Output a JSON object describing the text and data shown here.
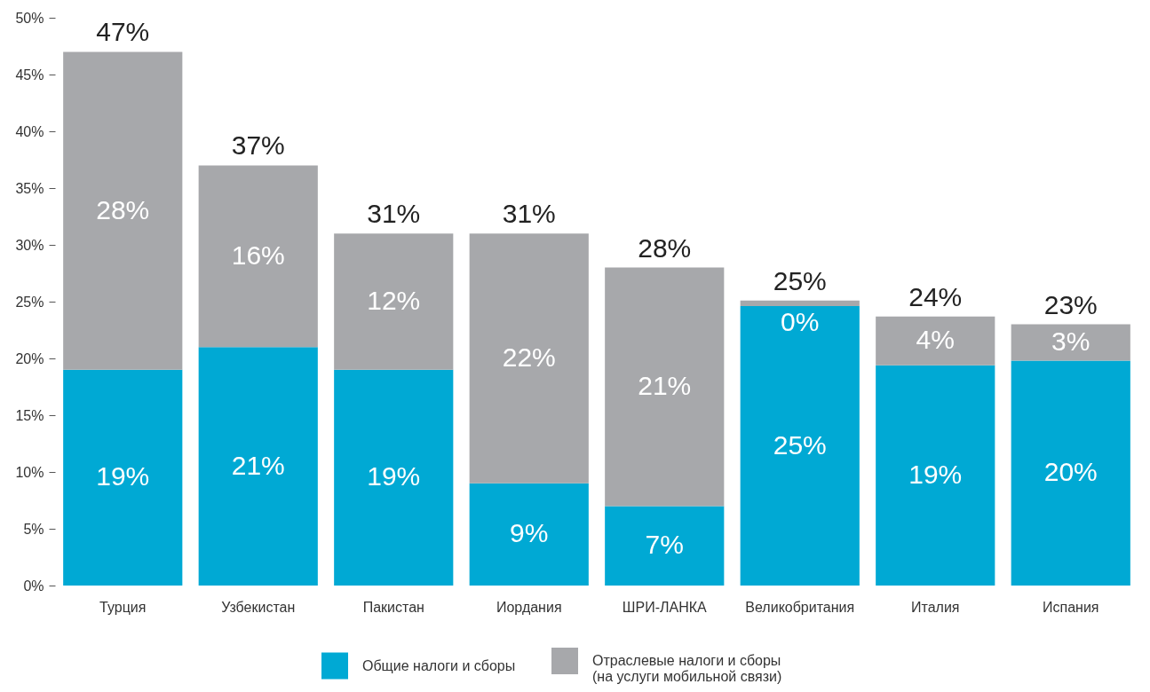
{
  "chart_data": {
    "type": "bar",
    "stacked": true,
    "categories": [
      "Турция",
      "Узбекистан",
      "Пакистан",
      "Иордания",
      "ШРИ-ЛАНКА",
      "Великобритания",
      "Италия",
      "Испания"
    ],
    "series": [
      {
        "name": "Общие налоги и сборы",
        "color": "#00a9d4",
        "values": [
          19,
          21,
          19,
          9,
          7,
          24.6,
          19.4,
          19.8
        ],
        "value_labels": [
          "19%",
          "21%",
          "19%",
          "9%",
          "7%",
          "25%",
          "19%",
          "20%"
        ]
      },
      {
        "name": "Отраслевые налоги и сборы (на услуги мобильной связи)",
        "color": "#a7a8ab",
        "values": [
          28,
          16,
          12,
          22,
          21,
          0.5,
          4.3,
          3.2
        ],
        "value_labels": [
          "28%",
          "16%",
          "12%",
          "22%",
          "21%",
          "0%",
          "4%",
          "3%"
        ]
      }
    ],
    "totals": [
      "47%",
      "37%",
      "31%",
      "31%",
      "28%",
      "25%",
      "24%",
      "23%"
    ],
    "ylim": [
      0,
      50
    ],
    "yticks": [
      {
        "value": 0,
        "label": "0%"
      },
      {
        "value": 5,
        "label": "5%"
      },
      {
        "value": 10,
        "label": "10%"
      },
      {
        "value": 15,
        "label": "15%"
      },
      {
        "value": 20,
        "label": "20%"
      },
      {
        "value": 25,
        "label": "25%"
      },
      {
        "value": 30,
        "label": "30%"
      },
      {
        "value": 35,
        "label": "35%"
      },
      {
        "value": 40,
        "label": "40%"
      },
      {
        "value": 45,
        "label": "45%"
      },
      {
        "value": 50,
        "label": "50%"
      }
    ],
    "grid": false,
    "legend": "bottom"
  }
}
